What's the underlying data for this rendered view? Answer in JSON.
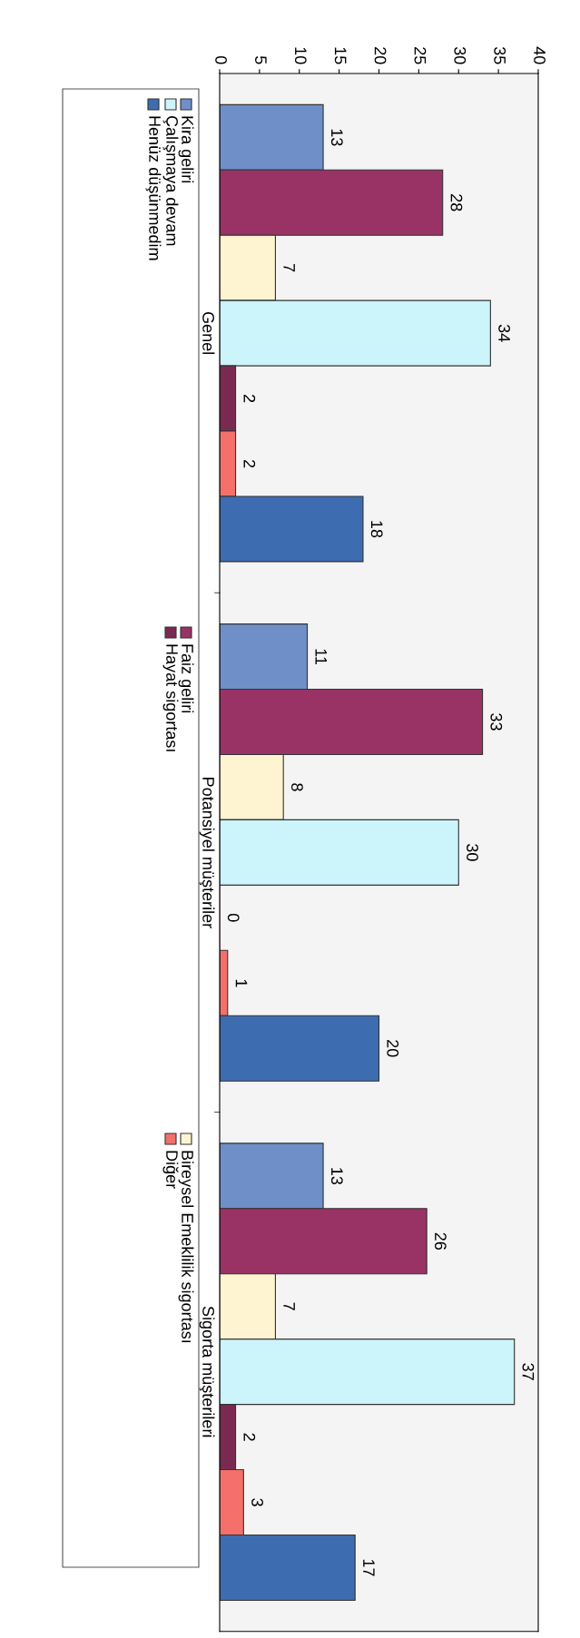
{
  "chart_data": {
    "type": "bar",
    "orientation": "horizontal",
    "categories": [
      "Genel",
      "Potansiyel müşteriler",
      "Sigorta müşterileri"
    ],
    "series": [
      {
        "name": "Kira geliri",
        "color": "#6f8fc8",
        "values": [
          13,
          11,
          13
        ]
      },
      {
        "name": "Faiz geliri",
        "color": "#993366",
        "values": [
          28,
          33,
          26
        ]
      },
      {
        "name": "Bireysel Emeklilik sigortası",
        "color": "#fff4d2",
        "values": [
          7,
          8,
          7
        ]
      },
      {
        "name": "Çalışmaya devam",
        "color": "#ccf4fb",
        "values": [
          34,
          30,
          37
        ]
      },
      {
        "name": "Hayat sigortası",
        "color": "#7a2a50",
        "values": [
          2,
          0,
          2
        ]
      },
      {
        "name": "Diğer",
        "color": "#f4706a",
        "values": [
          2,
          1,
          3
        ]
      },
      {
        "name": "Henüz düşünmedim",
        "color": "#3e6cb0",
        "values": [
          18,
          20,
          17
        ]
      }
    ],
    "xlim": [
      0,
      40
    ],
    "xticks": [
      0,
      5,
      10,
      15,
      20,
      25,
      30,
      35,
      40
    ],
    "data_labels": true,
    "grid": false,
    "legend": "left"
  }
}
